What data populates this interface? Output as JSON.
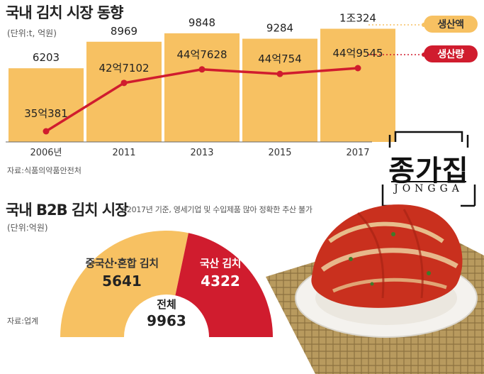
{
  "top": {
    "title": "국내 김치 시장 동향",
    "unit": "(단위:t, 억원)",
    "source": "자료:식품의약품안전처",
    "legend": [
      {
        "label": "생산액",
        "color": "#f7c162",
        "text_color": "#333333"
      },
      {
        "label": "생산량",
        "color": "#d01c2e",
        "text_color": "#ffffff"
      }
    ]
  },
  "bottom": {
    "title": "국내 B2B 김치 시장",
    "note": "※2017년 기준, 영세기업 및 수입제품 많아 정확한 추산 불가",
    "unit": "(단위:억원)",
    "source": "자료:업계",
    "total_label": "전체",
    "total_value": "9963"
  },
  "logo": {
    "korean": "종가집",
    "english": "JONGGA"
  },
  "chart_data": [
    {
      "type": "bar",
      "categories": [
        "2006년",
        "2011",
        "2013",
        "2015",
        "2017"
      ],
      "series": [
        {
          "name": "생산액",
          "values": [
            6203,
            8969,
            9848,
            9284,
            10324
          ],
          "labels": [
            "6203",
            "8969",
            "9848",
            "9284",
            "1조324"
          ],
          "color": "#f7c162"
        },
        {
          "name": "생산량",
          "values": [
            353810000,
            427102000,
            447628000,
            440754000,
            449545000
          ],
          "labels": [
            "35억381",
            "42억7102",
            "44억7628",
            "44억754",
            "44억9545"
          ],
          "color": "#d01c2e"
        }
      ]
    },
    {
      "type": "pie",
      "slices": [
        {
          "label": "중국산·혼합 김치",
          "value": 5641,
          "color": "#f7c162"
        },
        {
          "label": "국산 김치",
          "value": 4322,
          "color": "#d01c2e"
        }
      ],
      "total": 9963
    }
  ]
}
